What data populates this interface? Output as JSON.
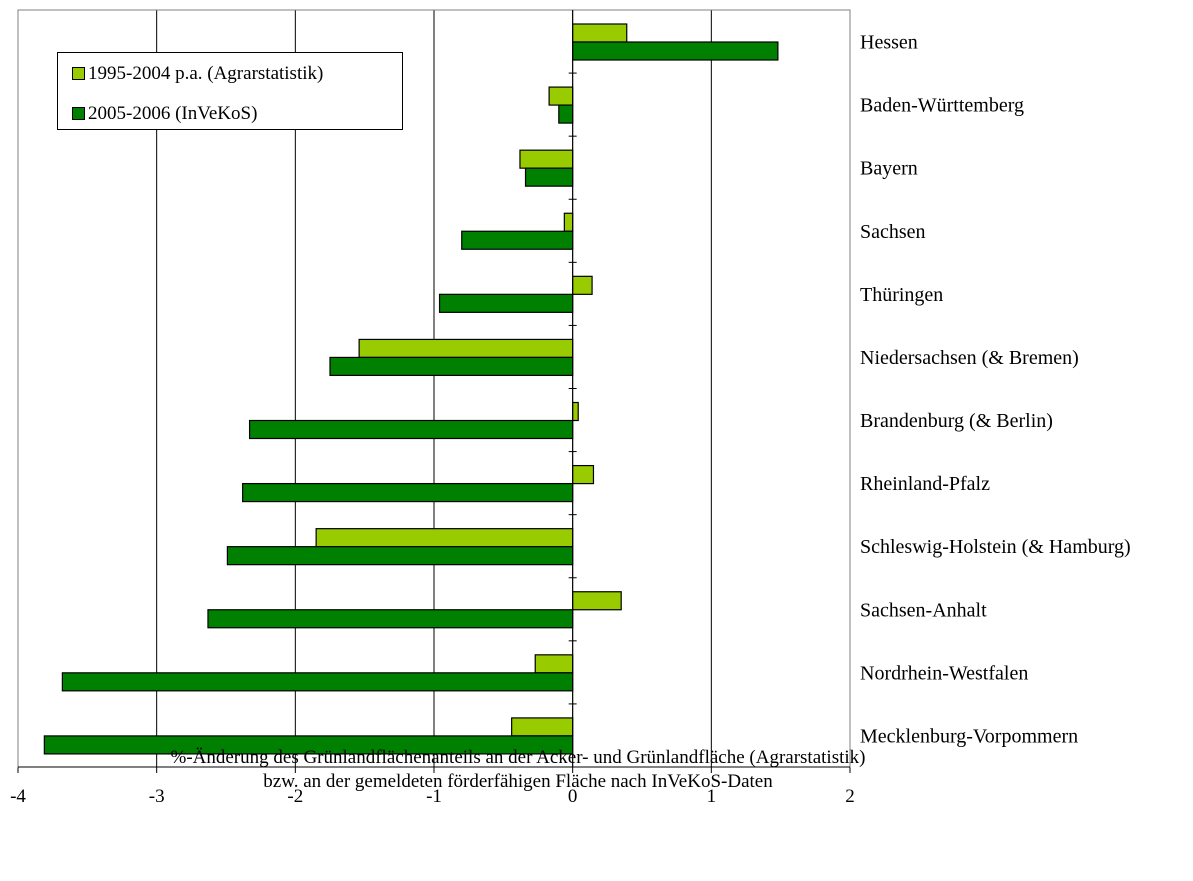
{
  "chart_data": {
    "type": "bar",
    "orientation": "horizontal",
    "categories": [
      "Hessen",
      "Baden-Württemberg",
      "Bayern",
      "Sachsen",
      "Thüringen",
      "Niedersachsen (& Bremen)",
      "Brandenburg (& Berlin)",
      "Rheinland-Pfalz",
      "Schleswig-Holstein (& Hamburg)",
      "Sachsen-Anhalt",
      "Nordrhein-Westfalen",
      "Mecklenburg-Vorpommern"
    ],
    "series": [
      {
        "name": "1995-2004 p.a. (Agrarstatistik)",
        "color": "#99CC00",
        "values": [
          0.39,
          -0.17,
          -0.38,
          -0.06,
          0.14,
          -1.54,
          0.04,
          0.15,
          -1.85,
          0.35,
          -0.27,
          -0.44
        ]
      },
      {
        "name": "2005-2006 (InVeKoS)",
        "color": "#008000",
        "values": [
          1.48,
          -0.1,
          -0.34,
          -0.8,
          -0.96,
          -1.75,
          -2.33,
          -2.38,
          -2.49,
          -2.63,
          -3.68,
          -3.81
        ]
      }
    ],
    "xlim": [
      -4,
      2
    ],
    "xticks": [
      "-4",
      "-3",
      "-2",
      "-1",
      "0",
      "1",
      "2"
    ],
    "xlabel": [
      "%-Änderung des Grünlandflächenanteils an der Acker- und Grünlandfläche (Agrarstatistik)",
      "bzw. an der gemeldeten förderfähigen Fläche nach InVeKoS-Daten"
    ],
    "grid": "vertical major gridlines",
    "legend_position": "top-left"
  }
}
